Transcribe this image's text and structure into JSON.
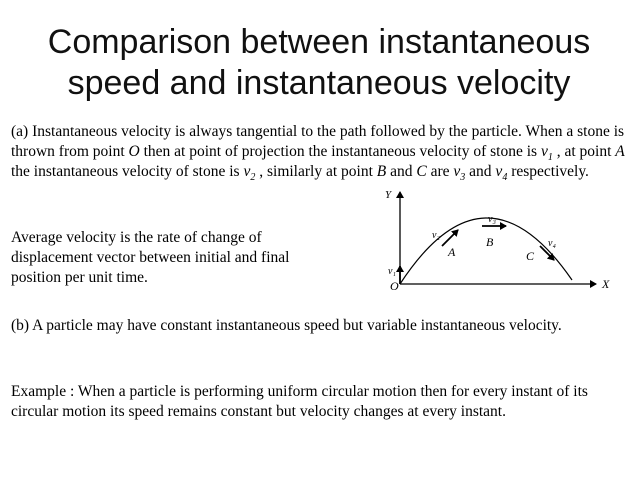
{
  "title": {
    "line1": "Comparison between instantaneous",
    "line2": "speed and instantaneous velocity"
  },
  "para_a": {
    "t1": "(a) Instantaneous velocity is always tangential to the path followed by the particle. When a stone is thrown from point ",
    "point_o": "O",
    "t2": " then at point of projection the instantaneous velocity of stone is ",
    "v1": "v",
    "v1_sub": "1",
    "t3": " , at point ",
    "point_a": "A",
    "t4": " the instantaneous velocity of stone is ",
    "v2": "v",
    "v2_sub": "2",
    "t5": " , similarly at point ",
    "point_b": "B",
    "t6": " and ",
    "point_c": "C",
    "t7": " are ",
    "v3": "v",
    "v3_sub": "3",
    "t8": " and ",
    "v4": "v",
    "v4_sub": "4",
    "t9": " respectively."
  },
  "para_avg": "Average velocity is the rate of change of displacement vector between initial and final position per unit time.",
  "para_b": "(b) A particle may have constant instantaneous speed but variable instantaneous velocity.",
  "para_example": "Example : When a particle is performing uniform circular motion then for every instant of its circular motion its speed remains constant but velocity changes at every instant.",
  "diagram": {
    "y_axis_label": "Y",
    "x_axis_label": "X",
    "origin_label": "O",
    "point_a": "A",
    "point_b": "B",
    "point_c": "C",
    "v1_label": "v₁",
    "v2_label": "v₂",
    "v3_label": "v₃",
    "v4_label": "v₄"
  }
}
